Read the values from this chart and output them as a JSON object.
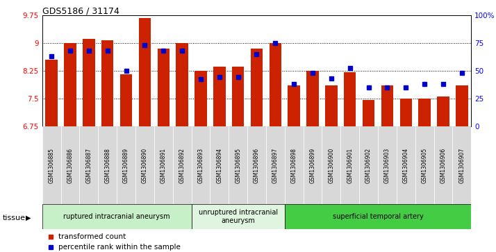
{
  "title": "GDS5186 / 31174",
  "samples": [
    "GSM1306885",
    "GSM1306886",
    "GSM1306887",
    "GSM1306888",
    "GSM1306889",
    "GSM1306890",
    "GSM1306891",
    "GSM1306892",
    "GSM1306893",
    "GSM1306894",
    "GSM1306895",
    "GSM1306896",
    "GSM1306897",
    "GSM1306898",
    "GSM1306899",
    "GSM1306900",
    "GSM1306901",
    "GSM1306902",
    "GSM1306903",
    "GSM1306904",
    "GSM1306905",
    "GSM1306906",
    "GSM1306907"
  ],
  "bar_values": [
    8.55,
    9.0,
    9.1,
    9.07,
    8.15,
    9.67,
    8.85,
    9.0,
    8.25,
    8.35,
    8.35,
    8.85,
    9.0,
    7.85,
    8.25,
    7.85,
    8.2,
    7.45,
    7.85,
    7.5,
    7.5,
    7.55,
    7.85
  ],
  "percentile_values": [
    63,
    68,
    68,
    68,
    50,
    73,
    68,
    68,
    42,
    44,
    44,
    65,
    75,
    38,
    48,
    43,
    52,
    35,
    35,
    35,
    38,
    38,
    48
  ],
  "ylim_left": [
    6.75,
    9.75
  ],
  "ylim_right": [
    0,
    100
  ],
  "yticks_left": [
    6.75,
    7.5,
    8.25,
    9.0,
    9.75
  ],
  "ytick_labels_left": [
    "6.75",
    "7.5",
    "8.25",
    "9",
    "9.75"
  ],
  "yticks_right": [
    0,
    25,
    50,
    75,
    100
  ],
  "ytick_labels_right": [
    "0",
    "25",
    "50",
    "75",
    "100%"
  ],
  "bar_color": "#cc2200",
  "dot_color": "#0000cc",
  "groups": [
    {
      "label": "ruptured intracranial aneurysm",
      "start": 0,
      "end": 8
    },
    {
      "label": "unruptured intracranial\naneurysm",
      "start": 8,
      "end": 13
    },
    {
      "label": "superficial temporal artery",
      "start": 13,
      "end": 23
    }
  ],
  "group_colors": [
    "#c8f0c8",
    "#e0f5e0",
    "#44cc44"
  ],
  "tissue_label": "tissue",
  "legend_red": "transformed count",
  "legend_blue": "percentile rank within the sample",
  "grid_values": [
    7.5,
    8.25,
    9.0
  ],
  "bar_baseline": 6.75
}
